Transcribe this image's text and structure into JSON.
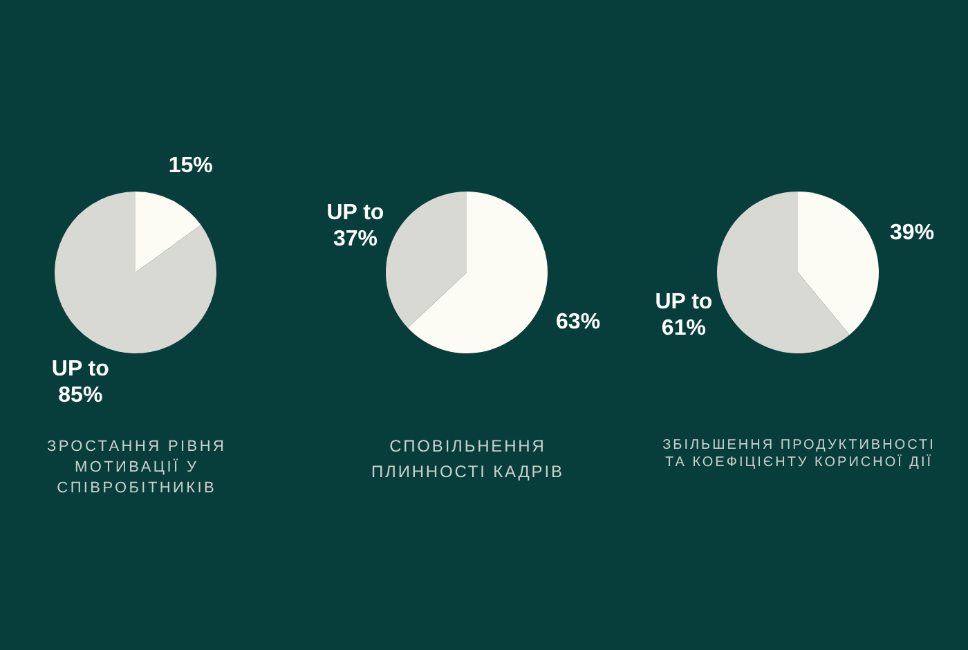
{
  "chart_data": [
    {
      "type": "pie",
      "title": "ЗРОСТАННЯ РІВНЯ МОТИВАЦІЇ У СПІВРОБІТНИКІВ",
      "categories": [
        null,
        null
      ],
      "values": [
        15,
        85
      ],
      "colors": [
        "#fcfcf4",
        "#d9d9d3"
      ],
      "value_labels": [
        "15%",
        "UP to 85%"
      ]
    },
    {
      "type": "pie",
      "title": "СПОВІЛЬНЕННЯ ПЛИННОСТІ КАДРІВ",
      "categories": [
        null,
        null
      ],
      "values": [
        63,
        37
      ],
      "colors": [
        "#fcfcf4",
        "#d9d9d3"
      ],
      "value_labels": [
        "63%",
        "UP to 37%"
      ]
    },
    {
      "type": "pie",
      "title": "ЗБІЛЬШЕННЯ ПРОДУКТИВНОСТІ ТА КОЕФІЦІЄНТУ КОРИСНОЇ ДІЇ",
      "categories": [
        null,
        null
      ],
      "values": [
        39,
        61
      ],
      "colors": [
        "#fcfcf4",
        "#d9d9d3"
      ],
      "value_labels": [
        "39%",
        "UP to 61%"
      ]
    }
  ]
}
